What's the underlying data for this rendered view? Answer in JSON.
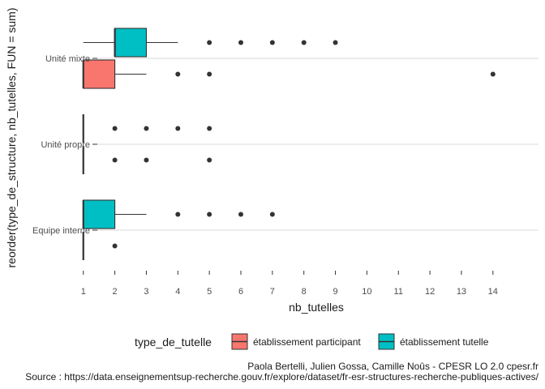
{
  "chart_data": {
    "type": "boxplot",
    "orientation": "horizontal",
    "xlabel": "nb_tutelles",
    "ylabel": "reorder(type_de_structure, nb_tutelles, FUN = sum)",
    "xlim": [
      0.5,
      14.1
    ],
    "x_ticks": [
      1,
      2,
      3,
      4,
      5,
      6,
      7,
      8,
      9,
      10,
      11,
      12,
      13,
      14
    ],
    "grid": "on",
    "legend_position": "bottom",
    "legend": {
      "title": "type_de_tutelle",
      "entries": [
        {
          "name": "établissement participant",
          "color": "#F8766D"
        },
        {
          "name": "établissement tutelle",
          "color": "#00BFC4"
        }
      ]
    },
    "categories": [
      "Unité mixte",
      "Unité propre",
      "Equipe interne"
    ],
    "series": [
      {
        "name": "établissement participant",
        "color": "#F8766D",
        "boxes": [
          {
            "category": "Unité mixte",
            "min": 1,
            "q1": 1,
            "median": 1,
            "q3": 2,
            "max": 3,
            "outliers": [
              4,
              5,
              14
            ]
          },
          {
            "category": "Unité propre",
            "min": 1,
            "q1": 1,
            "median": 1,
            "q3": 1,
            "max": 1,
            "outliers": [
              2,
              3,
              5
            ]
          },
          {
            "category": "Equipe interne",
            "min": 1,
            "q1": 1,
            "median": 1,
            "q3": 1,
            "max": 1,
            "outliers": [
              2
            ]
          }
        ]
      },
      {
        "name": "établissement tutelle",
        "color": "#00BFC4",
        "boxes": [
          {
            "category": "Unité mixte",
            "min": 1,
            "q1": 2,
            "median": 2,
            "q3": 3,
            "max": 4,
            "outliers": [
              5,
              6,
              7,
              8,
              9
            ]
          },
          {
            "category": "Unité propre",
            "min": 1,
            "q1": 1,
            "median": 1,
            "q3": 1,
            "max": 1,
            "outliers": [
              2,
              3,
              4,
              5
            ]
          },
          {
            "category": "Equipe interne",
            "min": 1,
            "q1": 1,
            "median": 1,
            "q3": 2,
            "max": 3,
            "outliers": [
              4,
              5,
              6,
              7
            ]
          }
        ]
      }
    ],
    "caption_lines": [
      "Paola Bertelli, Julien Gossa, Camille Noûs - CPESR LO 2.0 cpesr.fr",
      "Source : https://data.enseignementsup-recherche.gouv.fr/explore/dataset/fr-esr-structures-recherche-publiques-actives/"
    ]
  }
}
